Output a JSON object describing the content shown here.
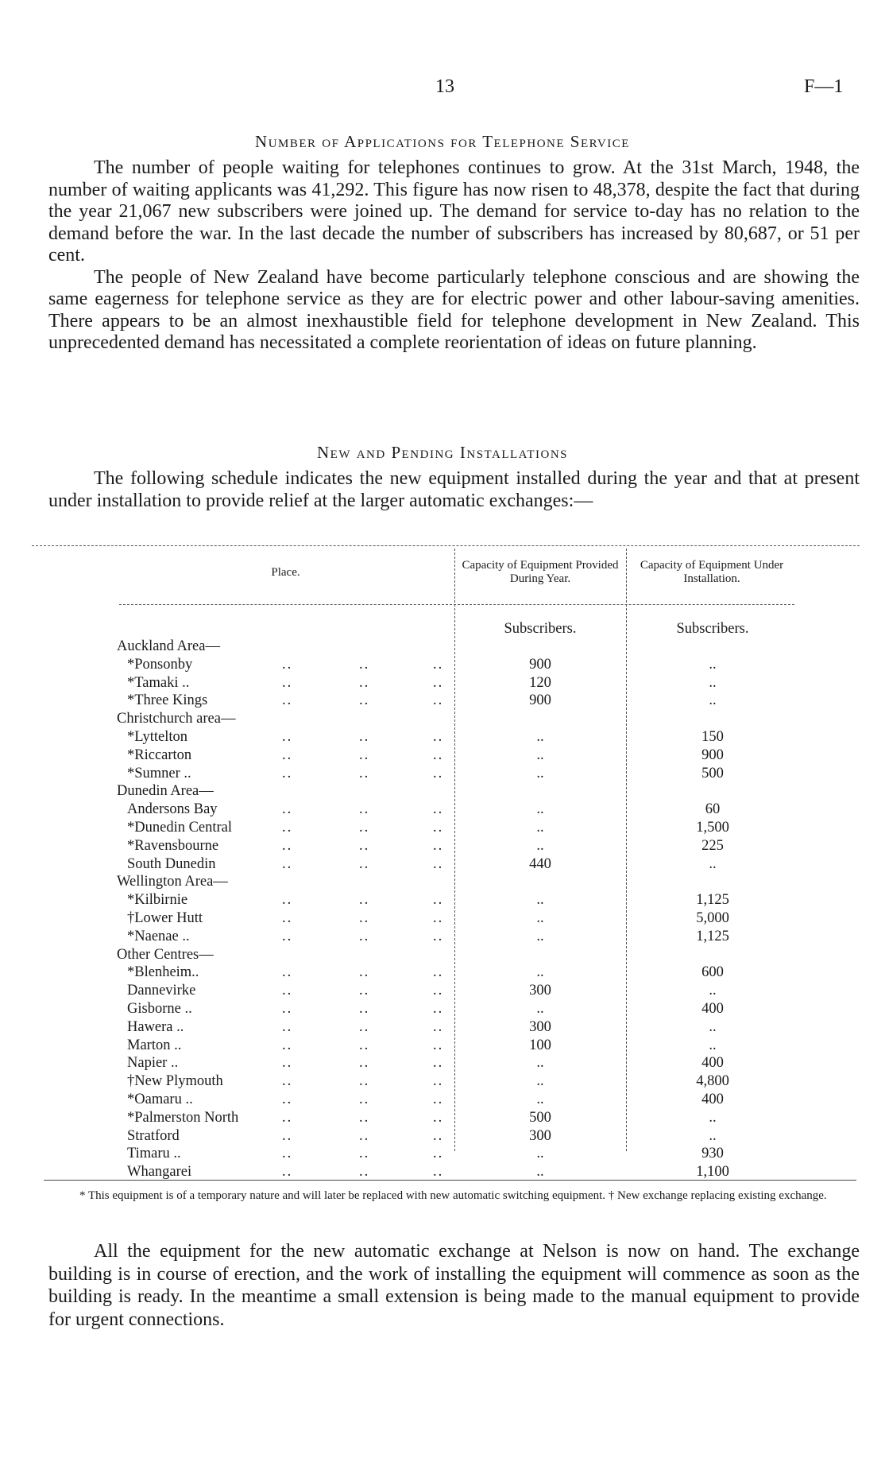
{
  "page_number": "13",
  "document_code": "F—1",
  "section1": {
    "title": "Number of Applications for Telephone Service",
    "paragraphs": [
      "The number of people waiting for telephones continues to grow. At the 31st March, 1948, the number of waiting applicants was 41,292. This figure has now risen to 48,378, despite the fact that during the year 21,067 new subscribers were joined up. The demand for service to-day has no relation to the demand before the war. In the last decade the number of subscribers has increased by 80,687, or 51 per cent.",
      "The people of New Zealand have become particularly telephone conscious and are showing the same eagerness for telephone service as they are for electric power and other labour-saving amenities. There appears to be an almost inexhaustible field for telephone development in New Zealand. This unprecedented demand has necessitated a complete reorientation of ideas on future planning."
    ]
  },
  "section2": {
    "title": "New and Pending Installations",
    "intro": "The following schedule indicates the new equipment installed during the year and that at present under installation to provide relief at the larger automatic exchanges:—"
  },
  "table": {
    "headers": [
      "Place.",
      "Capacity of Equipment Provided During Year.",
      "Capacity of Equipment Under Installation."
    ],
    "units": [
      "Subscribers.",
      "Subscribers."
    ],
    "rows": [
      {
        "place": "Auckland Area—",
        "group": true
      },
      {
        "place": "*Ponsonby",
        "provided": "900",
        "under": ".."
      },
      {
        "place": "*Tamaki ..",
        "provided": "120",
        "under": ".."
      },
      {
        "place": "*Three Kings",
        "provided": "900",
        "under": ".."
      },
      {
        "place": "Christchurch area—",
        "group": true
      },
      {
        "place": "*Lyttelton",
        "provided": "..",
        "under": "150"
      },
      {
        "place": "*Riccarton",
        "provided": "..",
        "under": "900"
      },
      {
        "place": "*Sumner ..",
        "provided": "..",
        "under": "500"
      },
      {
        "place": "Dunedin Area—",
        "group": true
      },
      {
        "place": "Andersons Bay",
        "provided": "..",
        "under": "60"
      },
      {
        "place": "*Dunedin Central",
        "provided": "..",
        "under": "1,500"
      },
      {
        "place": "*Ravensbourne",
        "provided": "..",
        "under": "225"
      },
      {
        "place": "South Dunedin",
        "provided": "440",
        "under": ".."
      },
      {
        "place": "Wellington Area—",
        "group": true
      },
      {
        "place": "*Kilbirnie",
        "provided": "..",
        "under": "1,125"
      },
      {
        "place": "†Lower Hutt",
        "provided": "..",
        "under": "5,000"
      },
      {
        "place": "*Naenae ..",
        "provided": "..",
        "under": "1,125"
      },
      {
        "place": "Other Centres—",
        "group": true
      },
      {
        "place": "*Blenheim..",
        "provided": "..",
        "under": "600"
      },
      {
        "place": "Dannevirke",
        "provided": "300",
        "under": ".."
      },
      {
        "place": "Gisborne ..",
        "provided": "..",
        "under": "400"
      },
      {
        "place": "Hawera ..",
        "provided": "300",
        "under": ".."
      },
      {
        "place": "Marton ..",
        "provided": "100",
        "under": ".."
      },
      {
        "place": "Napier ..",
        "provided": "..",
        "under": "400"
      },
      {
        "place": "†New Plymouth",
        "provided": "..",
        "under": "4,800"
      },
      {
        "place": "*Oamaru ..",
        "provided": "..",
        "under": "400"
      },
      {
        "place": "*Palmerston North",
        "provided": "500",
        "under": ".."
      },
      {
        "place": "Stratford",
        "provided": "300",
        "under": ".."
      },
      {
        "place": "Timaru ..",
        "provided": "..",
        "under": "930"
      },
      {
        "place": "Whangarei",
        "provided": "..",
        "under": "1,100"
      }
    ],
    "footnote": "* This equipment is of a temporary nature and will later be replaced with new automatic switching equipment.            † New exchange replacing existing exchange."
  },
  "closing": "All the equipment for the new automatic exchange at Nelson is now on hand. The exchange building is in course of erection, and the work of installing the equipment will commence as soon as the building is ready. In the meantime a small extension is being made to the manual equipment to provide for urgent connections."
}
